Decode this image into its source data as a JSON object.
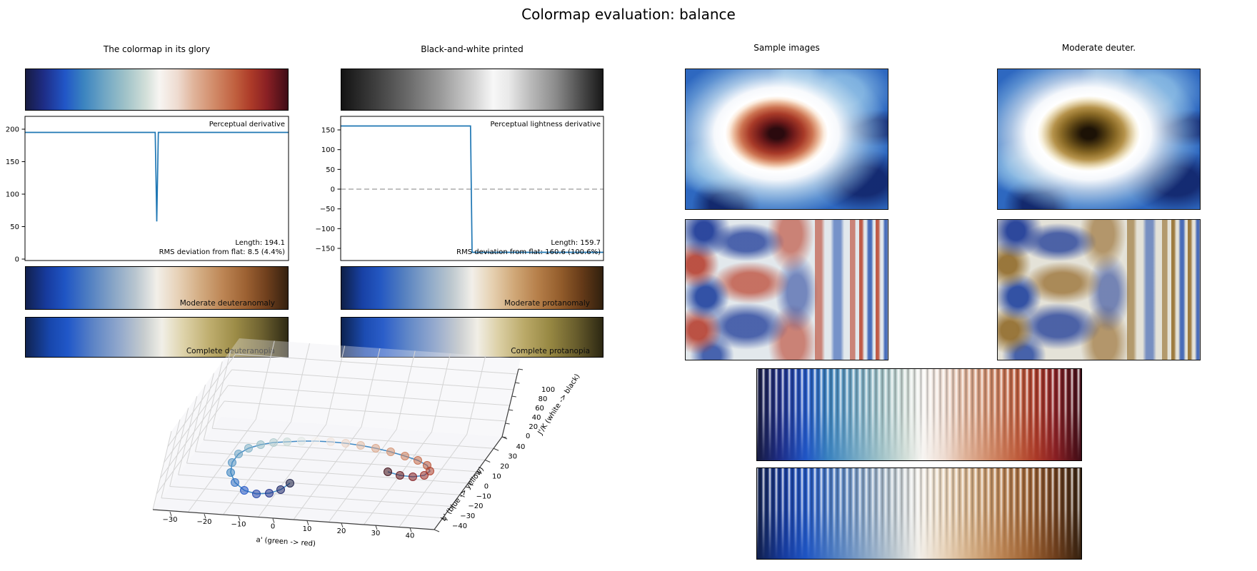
{
  "figure": {
    "title": "Colormap evaluation: balance"
  },
  "panels": {
    "glory": {
      "title": "The colormap in its glory"
    },
    "bw": {
      "title": "Black-and-white printed"
    },
    "samples": {
      "title": "Sample images"
    },
    "deuter": {
      "title": "Moderate deuter."
    }
  },
  "deriv_plot": {
    "annotation": "Perceptual derivative",
    "length": "Length: 194.1",
    "rms": "RMS deviation from flat: 8.5 (4.4%)"
  },
  "lightness_plot": {
    "annotation": "Perceptual lightness derivative",
    "length": "Length: 159.7",
    "rms": "RMS deviation from flat: 160.6 (100.6%)"
  },
  "cvd": {
    "moderate_deuteranomaly": "Moderate deuteranomaly",
    "complete_deuteranopia": "Complete deuteranopia",
    "moderate_protanomaly": "Moderate protanomaly",
    "complete_protanopia": "Complete protanopia"
  },
  "plot3d": {
    "xlabel": "a' (green -> red)",
    "ylabel": "b' (blue -> yellow)",
    "zlabel": "J'/K (white -> black)",
    "xticks": [
      -30,
      -20,
      -10,
      0,
      10,
      20,
      30,
      40
    ],
    "yticks": [
      -40,
      -30,
      -20,
      -10,
      0,
      10,
      20,
      30,
      40
    ],
    "zticks": [
      0,
      20,
      40,
      60,
      80,
      100
    ]
  },
  "colors": {
    "line": "#1f77b4",
    "zero_dash": "#9a9a9a",
    "balance": [
      [
        0,
        "#171b42"
      ],
      [
        7,
        "#1e2d87"
      ],
      [
        15,
        "#2156c7"
      ],
      [
        22,
        "#3a83c0"
      ],
      [
        30,
        "#6fa6c4"
      ],
      [
        38,
        "#9fc2c8"
      ],
      [
        46,
        "#d3dfd9"
      ],
      [
        51,
        "#f7f5f2"
      ],
      [
        58,
        "#eedbd0"
      ],
      [
        64,
        "#e0b49b"
      ],
      [
        72,
        "#d18a68"
      ],
      [
        80,
        "#c05f3e"
      ],
      [
        86,
        "#ac3a28"
      ],
      [
        92,
        "#8a2024"
      ],
      [
        100,
        "#3f0c16"
      ]
    ],
    "bw_print": [
      [
        0,
        "#131313"
      ],
      [
        12,
        "#3b3b3b"
      ],
      [
        25,
        "#686868"
      ],
      [
        38,
        "#9a9a9a"
      ],
      [
        50,
        "#cfcfcf"
      ],
      [
        58,
        "#f7f7f7"
      ],
      [
        64,
        "#e9e9e9"
      ],
      [
        72,
        "#bcbcbc"
      ],
      [
        82,
        "#8b8b8b"
      ],
      [
        92,
        "#4a4a4a"
      ],
      [
        100,
        "#181818"
      ]
    ],
    "moderate_deuteranomaly": [
      [
        0,
        "#11204e"
      ],
      [
        8,
        "#173b9e"
      ],
      [
        15,
        "#1f55c4"
      ],
      [
        24,
        "#4f7ec2"
      ],
      [
        33,
        "#85a3c6"
      ],
      [
        42,
        "#b9c6cf"
      ],
      [
        50,
        "#f2efe9"
      ],
      [
        58,
        "#e7d2b8"
      ],
      [
        66,
        "#d4ae85"
      ],
      [
        75,
        "#bd8655"
      ],
      [
        84,
        "#9c6132"
      ],
      [
        92,
        "#6f3f1d"
      ],
      [
        100,
        "#34200f"
      ]
    ],
    "complete_deuteranopia": [
      [
        0,
        "#102352"
      ],
      [
        9,
        "#1746ab"
      ],
      [
        16,
        "#2057c8"
      ],
      [
        26,
        "#5e85c6"
      ],
      [
        36,
        "#93a9cc"
      ],
      [
        45,
        "#c6ccce"
      ],
      [
        52,
        "#f1efe7"
      ],
      [
        60,
        "#ded3ab"
      ],
      [
        70,
        "#bfae6f"
      ],
      [
        80,
        "#9c8c47"
      ],
      [
        90,
        "#6d6130"
      ],
      [
        100,
        "#2f2a14"
      ]
    ],
    "moderate_protanomaly": [
      [
        0,
        "#0d1f47"
      ],
      [
        8,
        "#1841a5"
      ],
      [
        15,
        "#2458c2"
      ],
      [
        24,
        "#5580c0"
      ],
      [
        33,
        "#8aa6c8"
      ],
      [
        42,
        "#bcc7ce"
      ],
      [
        50,
        "#f2efe9"
      ],
      [
        58,
        "#e5cfaf"
      ],
      [
        66,
        "#d0a878"
      ],
      [
        75,
        "#b67f4a"
      ],
      [
        84,
        "#925c2b"
      ],
      [
        92,
        "#653a18"
      ],
      [
        100,
        "#30200e"
      ]
    ],
    "complete_protanopia": [
      [
        0,
        "#0c2250"
      ],
      [
        9,
        "#1c4cb2"
      ],
      [
        16,
        "#2b5ec9"
      ],
      [
        26,
        "#6389c8"
      ],
      [
        36,
        "#97abce"
      ],
      [
        45,
        "#c9cdd0"
      ],
      [
        52,
        "#f1eee6"
      ],
      [
        60,
        "#dcd0a6"
      ],
      [
        70,
        "#baa968"
      ],
      [
        80,
        "#968742"
      ],
      [
        90,
        "#675c2c"
      ],
      [
        100,
        "#2c2712"
      ]
    ]
  },
  "chart_data": [
    {
      "type": "line",
      "title": "Perceptual derivative",
      "x": [
        0,
        0.494,
        0.5,
        0.506,
        1
      ],
      "y": [
        195,
        195,
        58,
        195,
        195
      ],
      "ylim": [
        0,
        210
      ],
      "yticks": [
        0,
        50,
        100,
        150,
        200
      ],
      "grid": false,
      "annotations": [
        "Length: 194.1",
        "RMS deviation from flat: 8.5 (4.4%)"
      ]
    },
    {
      "type": "line",
      "title": "Perceptual lightness derivative",
      "x": [
        0,
        0.494,
        0.5,
        1
      ],
      "y": [
        160,
        160,
        -160,
        -160
      ],
      "ylim": [
        -168,
        172
      ],
      "yticks": [
        -150,
        -100,
        -50,
        0,
        50,
        100,
        150
      ],
      "zero_line": "dashed",
      "grid": false,
      "annotations": [
        "Length: 159.7",
        "RMS deviation from flat: 160.6 (100.6%)"
      ]
    },
    {
      "type": "scatter",
      "projection": "3d",
      "xlabel": "a' (green -> red)",
      "ylabel": "b' (blue -> yellow)",
      "zlabel": "J'/K (white -> black)",
      "xlim": [
        -30,
        40
      ],
      "ylim": [
        -40,
        40
      ],
      "zlim": [
        0,
        100
      ],
      "xticks": [
        -30,
        -20,
        -10,
        0,
        10,
        20,
        30,
        40
      ],
      "yticks": [
        -40,
        -30,
        -20,
        -10,
        0,
        10,
        20,
        30,
        40
      ],
      "zticks": [
        0,
        20,
        40,
        60,
        80,
        100
      ]
    }
  ]
}
